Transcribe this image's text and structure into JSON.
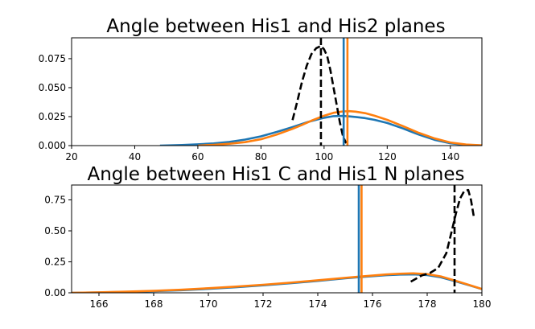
{
  "chart_data": [
    {
      "type": "line",
      "title": "Angle between His1 and His2 planes",
      "xlabel": "",
      "ylabel": "",
      "xlim": [
        20,
        150
      ],
      "ylim": [
        0,
        0.093
      ],
      "xticks": [
        20,
        40,
        60,
        80,
        100,
        120,
        140
      ],
      "yticks": [
        0.0,
        0.025,
        0.05,
        0.075
      ],
      "ytick_labels": [
        "0.000",
        "0.025",
        "0.050",
        "0.075"
      ],
      "grid": false,
      "legend": "none",
      "series": [
        {
          "color": "#1f77b4",
          "style": "solid",
          "x": [
            48,
            55,
            60,
            65,
            70,
            75,
            80,
            85,
            90,
            95,
            100,
            103,
            106,
            108,
            110,
            113,
            116,
            120,
            125,
            130,
            135,
            140,
            145,
            150
          ],
          "y": [
            0.0,
            0.0005,
            0.0011,
            0.0019,
            0.0032,
            0.0052,
            0.008,
            0.0118,
            0.016,
            0.0205,
            0.024,
            0.0254,
            0.0256,
            0.0252,
            0.0247,
            0.0237,
            0.0222,
            0.0195,
            0.0148,
            0.0095,
            0.005,
            0.002,
            0.0006,
            0.0001
          ]
        },
        {
          "color": "#ff7f0e",
          "style": "solid",
          "x": [
            60,
            65,
            70,
            75,
            80,
            85,
            90,
            93,
            96,
            100,
            103,
            106,
            108,
            110,
            113,
            116,
            120,
            125,
            130,
            135,
            140,
            145,
            150
          ],
          "y": [
            0.0,
            0.0007,
            0.0016,
            0.003,
            0.0055,
            0.0095,
            0.0145,
            0.0178,
            0.0215,
            0.0258,
            0.0283,
            0.0295,
            0.0297,
            0.0293,
            0.028,
            0.0258,
            0.0222,
            0.0168,
            0.011,
            0.0062,
            0.0027,
            0.0009,
            0.0002
          ]
        },
        {
          "color": "#000000",
          "style": "dashed",
          "x": [
            90,
            91.5,
            93,
            94.5,
            96,
            97.5,
            99,
            100,
            101,
            102,
            103,
            104,
            105,
            106,
            107
          ],
          "y": [
            0.022,
            0.038,
            0.055,
            0.069,
            0.079,
            0.084,
            0.086,
            0.083,
            0.077,
            0.065,
            0.05,
            0.035,
            0.02,
            0.008,
            0.002
          ]
        }
      ],
      "vlines": [
        {
          "x": 99,
          "color": "#000000",
          "style": "dashed"
        },
        {
          "x": 106.2,
          "color": "#1f77b4",
          "style": "solid"
        },
        {
          "x": 107.4,
          "color": "#ff7f0e",
          "style": "solid"
        }
      ]
    },
    {
      "type": "line",
      "title": "Angle between His1 C and His1 N planes",
      "xlabel": "",
      "ylabel": "",
      "xlim": [
        165,
        180
      ],
      "ylim": [
        0,
        0.87
      ],
      "xticks": [
        166,
        168,
        170,
        172,
        174,
        176,
        178,
        180
      ],
      "yticks": [
        0.0,
        0.25,
        0.5,
        0.75
      ],
      "ytick_labels": [
        "0.00",
        "0.25",
        "0.50",
        "0.75"
      ],
      "grid": false,
      "legend": "none",
      "series": [
        {
          "color": "#1f77b4",
          "style": "solid",
          "x": [
            165,
            166,
            167,
            168,
            169,
            170,
            171,
            172,
            173,
            174,
            175,
            175.5,
            176,
            176.5,
            177,
            177.5,
            178,
            178.5,
            179,
            179.5,
            180
          ],
          "y": [
            0.0,
            0.003,
            0.007,
            0.013,
            0.021,
            0.032,
            0.045,
            0.06,
            0.077,
            0.096,
            0.117,
            0.126,
            0.134,
            0.142,
            0.147,
            0.149,
            0.143,
            0.125,
            0.095,
            0.063,
            0.03
          ]
        },
        {
          "color": "#ff7f0e",
          "style": "solid",
          "x": [
            165,
            166,
            167,
            168,
            169,
            170,
            171,
            172,
            173,
            174,
            175,
            175.5,
            176,
            176.5,
            177,
            177.5,
            178,
            178.5,
            179,
            179.5,
            180
          ],
          "y": [
            0.0,
            0.004,
            0.009,
            0.016,
            0.025,
            0.037,
            0.05,
            0.065,
            0.082,
            0.101,
            0.121,
            0.13,
            0.139,
            0.148,
            0.154,
            0.157,
            0.151,
            0.132,
            0.1,
            0.066,
            0.031
          ]
        },
        {
          "color": "#000000",
          "style": "dashed",
          "x": [
            177.4,
            177.8,
            178.1,
            178.4,
            178.7,
            178.9,
            179.05,
            179.2,
            179.35,
            179.5,
            179.6,
            179.7
          ],
          "y": [
            0.09,
            0.14,
            0.16,
            0.2,
            0.32,
            0.5,
            0.64,
            0.76,
            0.82,
            0.83,
            0.75,
            0.62
          ]
        }
      ],
      "vlines": [
        {
          "x": 175.5,
          "color": "#1f77b4",
          "style": "solid"
        },
        {
          "x": 175.6,
          "color": "#ff7f0e",
          "style": "solid"
        },
        {
          "x": 179.0,
          "color": "#000000",
          "style": "dashed"
        }
      ]
    }
  ]
}
